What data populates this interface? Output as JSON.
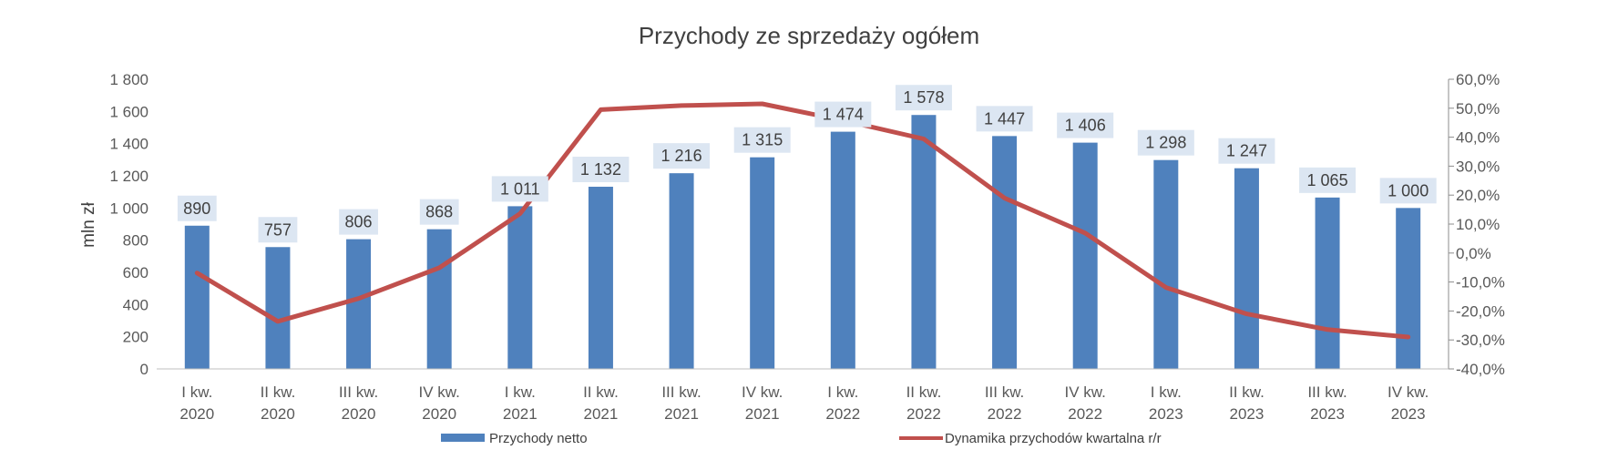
{
  "chart_data": {
    "type": "bar+line",
    "title": "Przychody ze sprzedaży ogółem",
    "ylabel": "mln zł",
    "categories": [
      [
        "I kw.",
        "2020"
      ],
      [
        "II kw.",
        "2020"
      ],
      [
        "III kw.",
        "2020"
      ],
      [
        "IV kw.",
        "2020"
      ],
      [
        "I kw.",
        "2021"
      ],
      [
        "II kw.",
        "2021"
      ],
      [
        "III kw.",
        "2021"
      ],
      [
        "IV kw.",
        "2021"
      ],
      [
        "I kw.",
        "2022"
      ],
      [
        "II kw.",
        "2022"
      ],
      [
        "III kw.",
        "2022"
      ],
      [
        "IV kw.",
        "2022"
      ],
      [
        "I kw.",
        "2023"
      ],
      [
        "II kw.",
        "2023"
      ],
      [
        "III kw.",
        "2023"
      ],
      [
        "IV kw.",
        "2023"
      ]
    ],
    "bar_series": {
      "name": "Przychody netto",
      "color": "#4f81bd",
      "values": [
        890,
        757,
        806,
        868,
        1011,
        1132,
        1216,
        1315,
        1474,
        1578,
        1447,
        1406,
        1298,
        1247,
        1065,
        1000
      ],
      "labels": [
        "890",
        "757",
        "806",
        "868",
        "1 011",
        "1 132",
        "1 216",
        "1 315",
        "1 474",
        "1 578",
        "1 447",
        "1 406",
        "1 298",
        "1 247",
        "1 065",
        "1 000"
      ]
    },
    "line_series": {
      "name": "Dynamika przychodów kwartalna r/r",
      "color": "#c0504d",
      "values": [
        -6.9,
        -23.6,
        -15.7,
        -5.1,
        13.6,
        49.5,
        50.9,
        51.5,
        45.8,
        39.4,
        19.0,
        6.9,
        -11.9,
        -21.0,
        -26.4,
        -29.0
      ]
    },
    "y_left": {
      "min": 0,
      "max": 1800,
      "step": 200,
      "tick_labels": [
        "0",
        "200",
        "400",
        "600",
        "800",
        "1 000",
        "1 200",
        "1 400",
        "1 600",
        "1 800"
      ]
    },
    "y_right": {
      "min": -40,
      "max": 60,
      "step": 10,
      "tick_labels": [
        "-40,0%",
        "-30,0%",
        "-20,0%",
        "-10,0%",
        "0,0%",
        "10,0%",
        "20,0%",
        "30,0%",
        "40,0%",
        "50,0%",
        "60,0%"
      ]
    },
    "grid": false,
    "legend": "bottom"
  }
}
